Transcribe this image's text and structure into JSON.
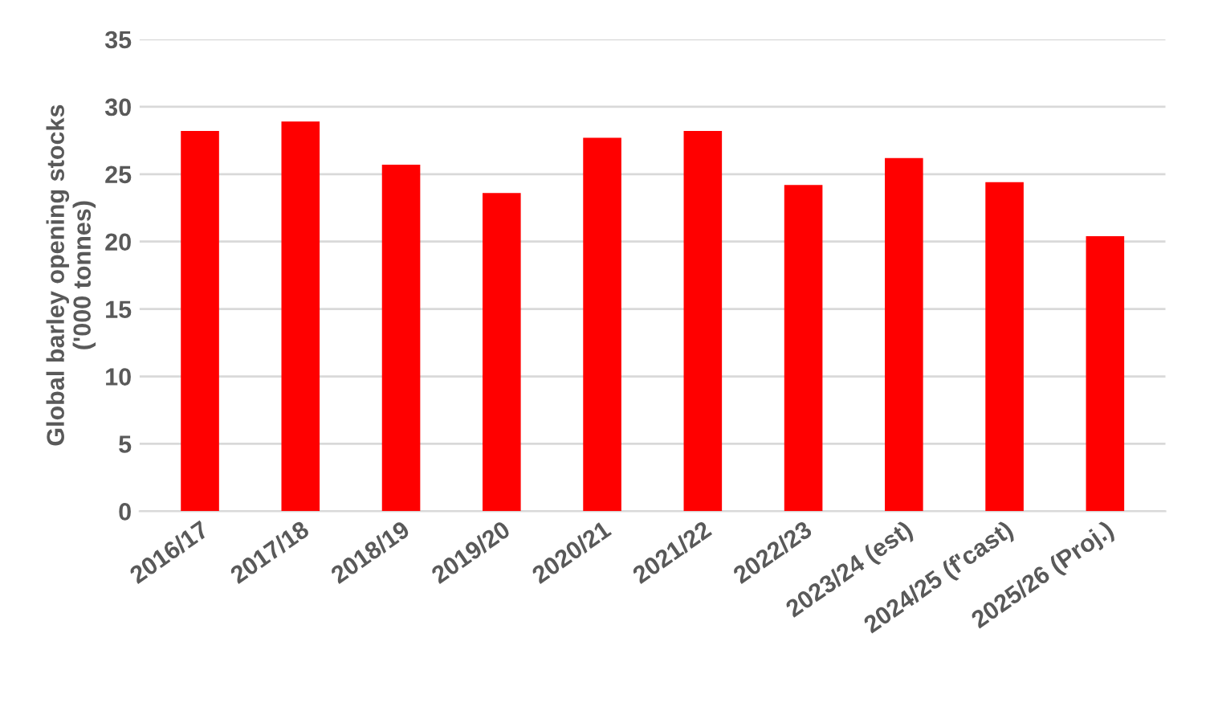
{
  "chart_data": {
    "type": "bar",
    "ylabel": "Global barley opening stocks\n('000 tonnes)",
    "categories": [
      "2016/17",
      "2017/18",
      "2018/19",
      "2019/20",
      "2020/21",
      "2021/22",
      "2022/23",
      "2023/24 (est)",
      "2024/25 (f'cast)",
      "2025/26 (Proj.)"
    ],
    "values": [
      28.2,
      28.9,
      25.7,
      23.6,
      27.7,
      28.2,
      24.2,
      26.2,
      24.4,
      20.4
    ],
    "color": "#ff0000",
    "ylim": [
      0,
      35
    ],
    "yticks": [
      0,
      5,
      10,
      15,
      20,
      25,
      30,
      35
    ],
    "grid": "y"
  }
}
